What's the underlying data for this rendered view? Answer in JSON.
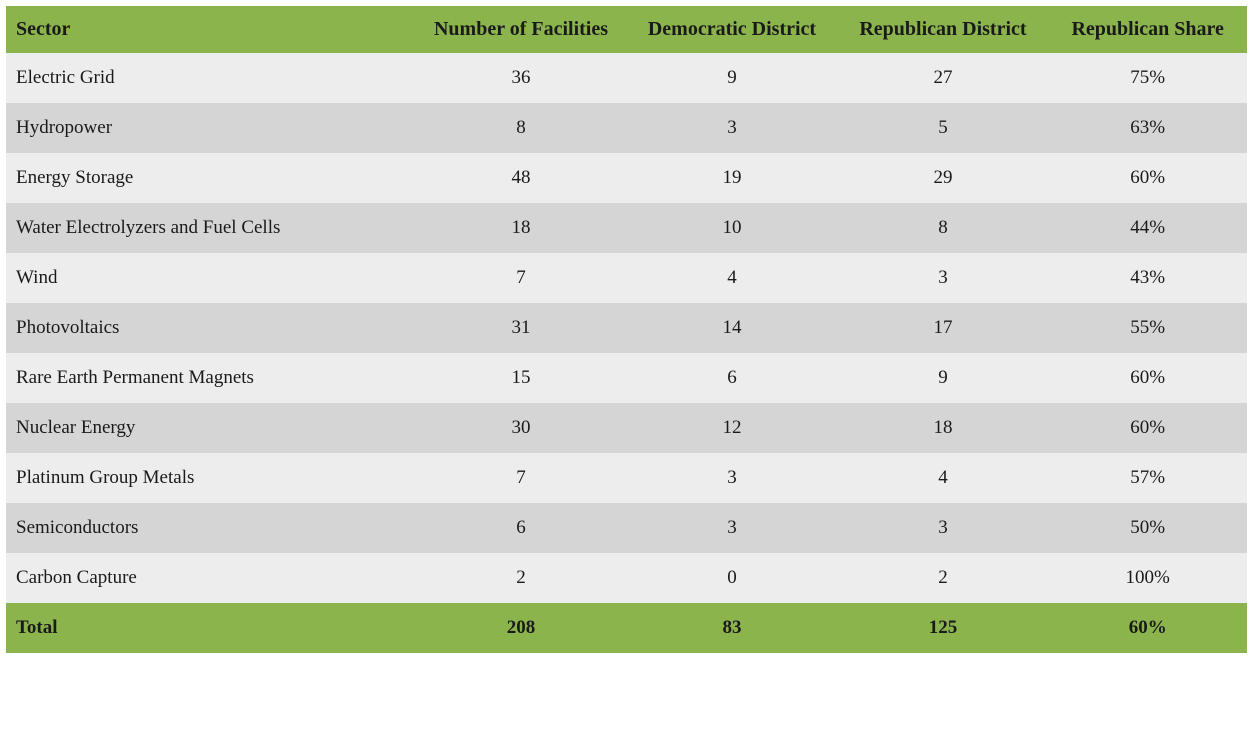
{
  "table": {
    "type": "table",
    "header_bg_color": "#8bb54c",
    "row_odd_bg_color": "#ededed",
    "row_even_bg_color": "#d5d5d5",
    "footer_bg_color": "#8bb54c",
    "text_color": "#1a1a1a",
    "header_fontsize": 20,
    "body_fontsize": 19,
    "font_family": "Georgia, serif",
    "columns": [
      {
        "key": "sector",
        "label": "Sector",
        "align": "left",
        "width_pct": 33
      },
      {
        "key": "facilities",
        "label": "Number of Facilities",
        "align": "center",
        "width_pct": 17
      },
      {
        "key": "democratic",
        "label": "Democratic District",
        "align": "center",
        "width_pct": 17
      },
      {
        "key": "republican",
        "label": "Republican District",
        "align": "center",
        "width_pct": 17
      },
      {
        "key": "share",
        "label": "Republican Share",
        "align": "center",
        "width_pct": 16
      }
    ],
    "rows": [
      {
        "sector": "Electric Grid",
        "facilities": "36",
        "democratic": "9",
        "republican": "27",
        "share": "75%"
      },
      {
        "sector": "Hydropower",
        "facilities": "8",
        "democratic": "3",
        "republican": "5",
        "share": "63%"
      },
      {
        "sector": "Energy Storage",
        "facilities": "48",
        "democratic": "19",
        "republican": "29",
        "share": "60%"
      },
      {
        "sector": "Water Electrolyzers and Fuel Cells",
        "facilities": "18",
        "democratic": "10",
        "republican": "8",
        "share": "44%"
      },
      {
        "sector": "Wind",
        "facilities": "7",
        "democratic": "4",
        "republican": "3",
        "share": "43%"
      },
      {
        "sector": "Photovoltaics",
        "facilities": "31",
        "democratic": "14",
        "republican": "17",
        "share": "55%"
      },
      {
        "sector": "Rare Earth Permanent Magnets",
        "facilities": "15",
        "democratic": "6",
        "republican": "9",
        "share": "60%"
      },
      {
        "sector": "Nuclear Energy",
        "facilities": "30",
        "democratic": "12",
        "republican": "18",
        "share": "60%"
      },
      {
        "sector": "Platinum Group Metals",
        "facilities": "7",
        "democratic": "3",
        "republican": "4",
        "share": "57%"
      },
      {
        "sector": "Semiconductors",
        "facilities": "6",
        "democratic": "3",
        "republican": "3",
        "share": "50%"
      },
      {
        "sector": "Carbon Capture",
        "facilities": "2",
        "democratic": "0",
        "republican": "2",
        "share": "100%"
      }
    ],
    "footer": {
      "label": "Total",
      "facilities": "208",
      "democratic": "83",
      "republican": "125",
      "share": "60%"
    }
  }
}
